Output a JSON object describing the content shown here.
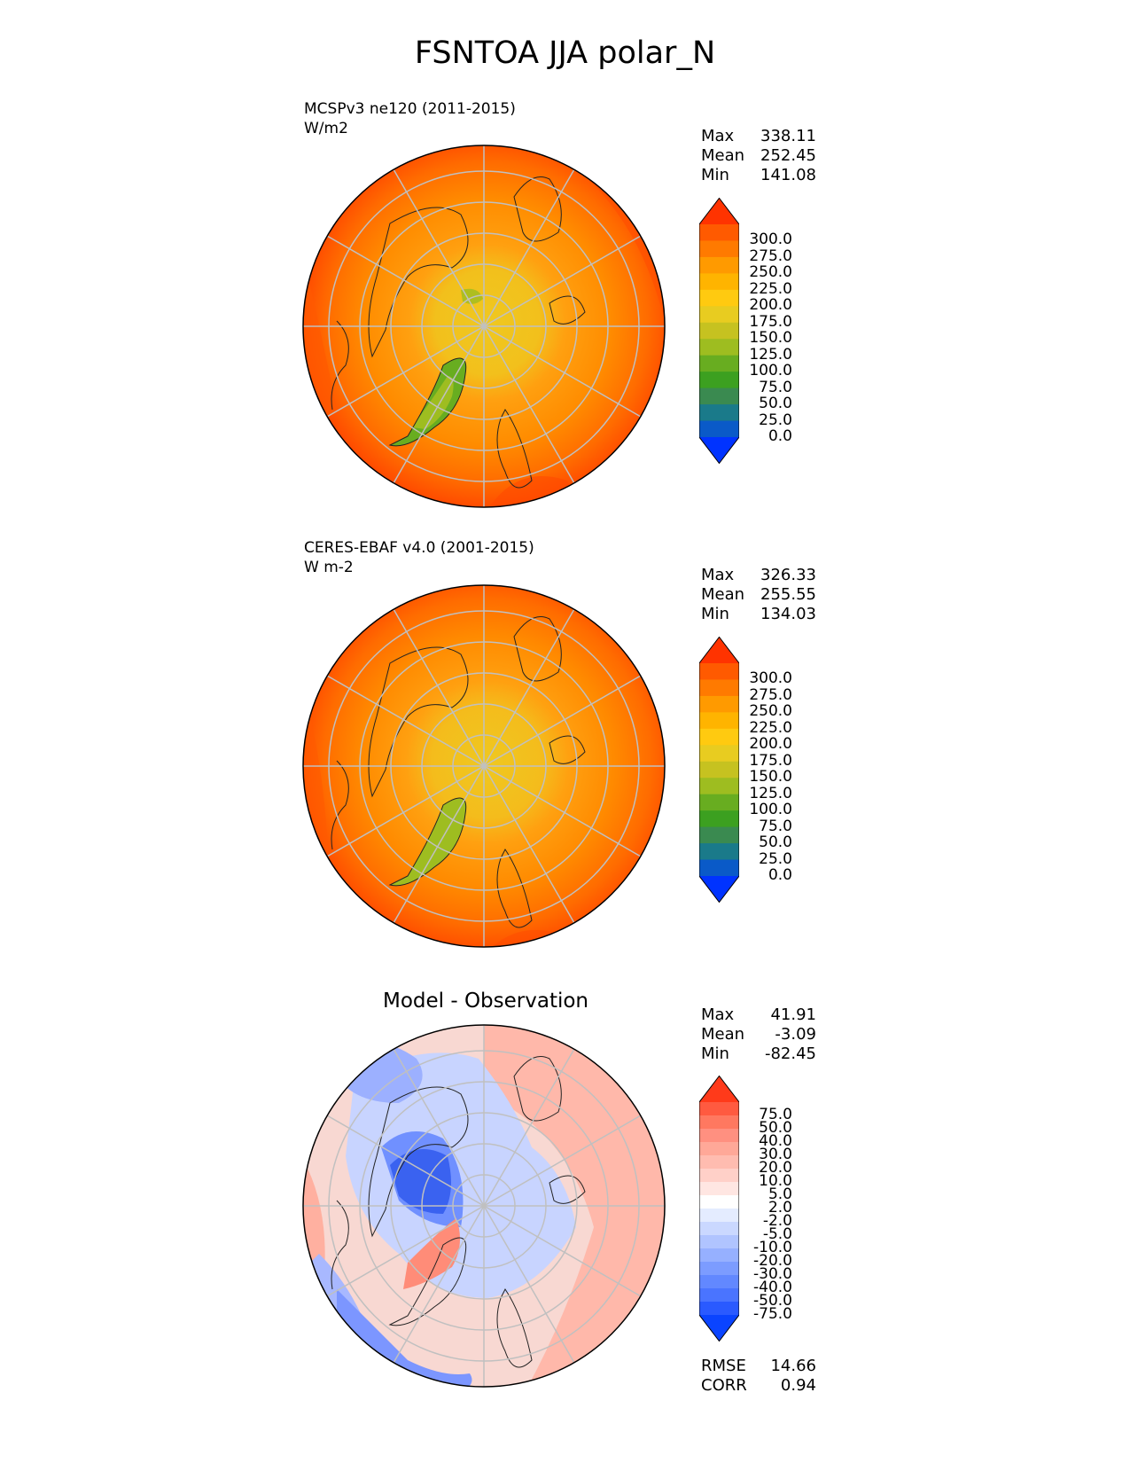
{
  "title": "FSNTOA JJA polar_N",
  "panels": [
    {
      "subtitle_line1": "MCSPv3 ne120 (2011-2015)",
      "subtitle_line2": "W/m2",
      "stats": [
        {
          "label": "Max",
          "value": "338.11"
        },
        {
          "label": "Mean",
          "value": "252.45"
        },
        {
          "label": "Min",
          "value": "141.08"
        }
      ],
      "colorbar_labels": [
        "300.0",
        "275.0",
        "250.0",
        "225.0",
        "200.0",
        "175.0",
        "150.0",
        "125.0",
        "100.0",
        "75.0",
        "50.0",
        "25.0",
        "0.0"
      ],
      "colorbar_colors": [
        "#ff3300",
        "#ff5a00",
        "#ff7a00",
        "#ff9a00",
        "#ffb400",
        "#ffca10",
        "#e8cc20",
        "#c6c220",
        "#9ebd20",
        "#68ad20",
        "#3ca020",
        "#3a8a50",
        "#1a7a8a",
        "#0a5ac8",
        "#0033ff"
      ]
    },
    {
      "subtitle_line1": "CERES-EBAF v4.0 (2001-2015)",
      "subtitle_line2": "W m-2",
      "stats": [
        {
          "label": "Max",
          "value": "326.33"
        },
        {
          "label": "Mean",
          "value": "255.55"
        },
        {
          "label": "Min",
          "value": "134.03"
        }
      ],
      "colorbar_labels": [
        "300.0",
        "275.0",
        "250.0",
        "225.0",
        "200.0",
        "175.0",
        "150.0",
        "125.0",
        "100.0",
        "75.0",
        "50.0",
        "25.0",
        "0.0"
      ],
      "colorbar_colors": [
        "#ff3300",
        "#ff5a00",
        "#ff7a00",
        "#ff9a00",
        "#ffb400",
        "#ffca10",
        "#e8cc20",
        "#c6c220",
        "#9ebd20",
        "#68ad20",
        "#3ca020",
        "#3a8a50",
        "#1a7a8a",
        "#0a5ac8",
        "#0033ff"
      ]
    },
    {
      "title": "Model - Observation",
      "stats": [
        {
          "label": "Max",
          "value": "41.91"
        },
        {
          "label": "Mean",
          "value": "-3.09"
        },
        {
          "label": "Min",
          "value": "-82.45"
        }
      ],
      "colorbar_labels": [
        "75.0",
        "50.0",
        "40.0",
        "30.0",
        "20.0",
        "10.0",
        "5.0",
        "2.0",
        "-2.0",
        "-5.0",
        "-10.0",
        "-20.0",
        "-30.0",
        "-40.0",
        "-50.0",
        "-75.0"
      ],
      "colorbar_colors": [
        "#ff3a1a",
        "#ff5a40",
        "#ff7860",
        "#ff9080",
        "#ffa898",
        "#ffbcb0",
        "#ffd0c8",
        "#ffe6e2",
        "#ffffff",
        "#e4ecff",
        "#cad8ff",
        "#b0c4ff",
        "#96b0ff",
        "#7c9cff",
        "#6288ff",
        "#4a74ff",
        "#2a5aff",
        "#0a44ff"
      ],
      "footer_stats": [
        {
          "label": "RMSE",
          "value": "14.66"
        },
        {
          "label": "CORR",
          "value": "0.94"
        }
      ]
    }
  ]
}
